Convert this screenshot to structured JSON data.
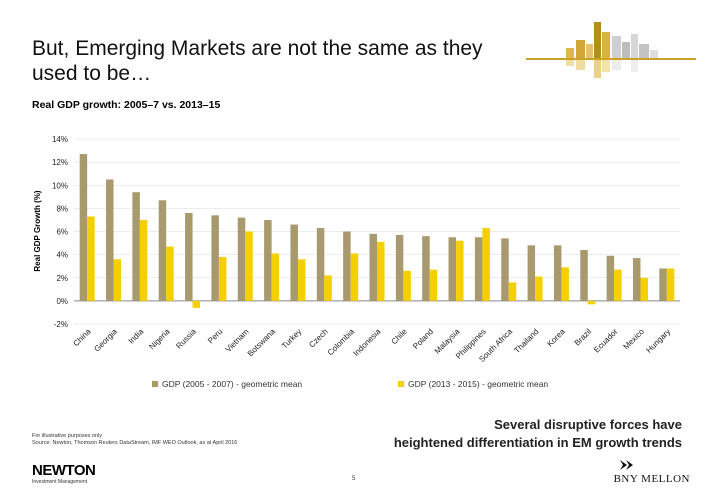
{
  "slide": {
    "title": "But, Emerging Markets are not the same as they used to be…",
    "subtitle": "Real GDP growth: 2005–7 vs. 2013–15",
    "footnote_line1": "For illustrative purposes only",
    "footnote_line2": "Source: Newton, Thomson Reuters DataStream, IMF WEO Outlook, as at April 2016",
    "takeaway_line1": "Several disruptive forces have",
    "takeaway_line2": "heightened differentiation in EM growth trends",
    "page_number": "5",
    "newton_logo": "NEWTON",
    "newton_sub": "Investment Management",
    "bny_logo": "BNY MELLON"
  },
  "colors": {
    "series1": "#a89a6e",
    "series2": "#f5d000",
    "gridline": "#d9d9d9",
    "axis": "#888888"
  },
  "chart_data": {
    "type": "bar",
    "title": "Real GDP growth: 2005–7 vs. 2013–15",
    "xlabel": "",
    "ylabel": "Real GDP Growth (%)",
    "ylim": [
      -2,
      14
    ],
    "yticks": [
      -2,
      0,
      2,
      4,
      6,
      8,
      10,
      12,
      14
    ],
    "ytick_labels": [
      "-2%",
      "0%",
      "2%",
      "4%",
      "6%",
      "8%",
      "10%",
      "12%",
      "14%"
    ],
    "categories": [
      "China",
      "Georgia",
      "India",
      "Nigeria",
      "Russia",
      "Peru",
      "Vietnam",
      "Botswana",
      "Turkey",
      "Czech",
      "Colombia",
      "Indonesia",
      "Chile",
      "Poland",
      "Malaysia",
      "Philippines",
      "South Africa",
      "Thailand",
      "Korea",
      "Brazil",
      "Ecuador",
      "Mexico",
      "Hungary"
    ],
    "series": [
      {
        "name": "GDP (2005 - 2007) - geometric mean",
        "values": [
          12.7,
          10.5,
          9.4,
          8.7,
          7.6,
          7.4,
          7.2,
          7.0,
          6.6,
          6.3,
          6.0,
          5.8,
          5.7,
          5.6,
          5.5,
          5.5,
          5.4,
          4.8,
          4.8,
          4.4,
          3.9,
          3.7,
          2.8
        ]
      },
      {
        "name": "GDP (2013 - 2015) - geometric mean",
        "values": [
          7.3,
          3.6,
          7.0,
          4.7,
          -0.6,
          3.8,
          6.0,
          4.1,
          3.6,
          2.2,
          4.1,
          5.1,
          2.6,
          2.7,
          5.2,
          6.3,
          1.6,
          2.1,
          2.9,
          -0.3,
          2.7,
          2.0,
          2.8
        ]
      }
    ],
    "legend": "bottom",
    "grid": true
  }
}
